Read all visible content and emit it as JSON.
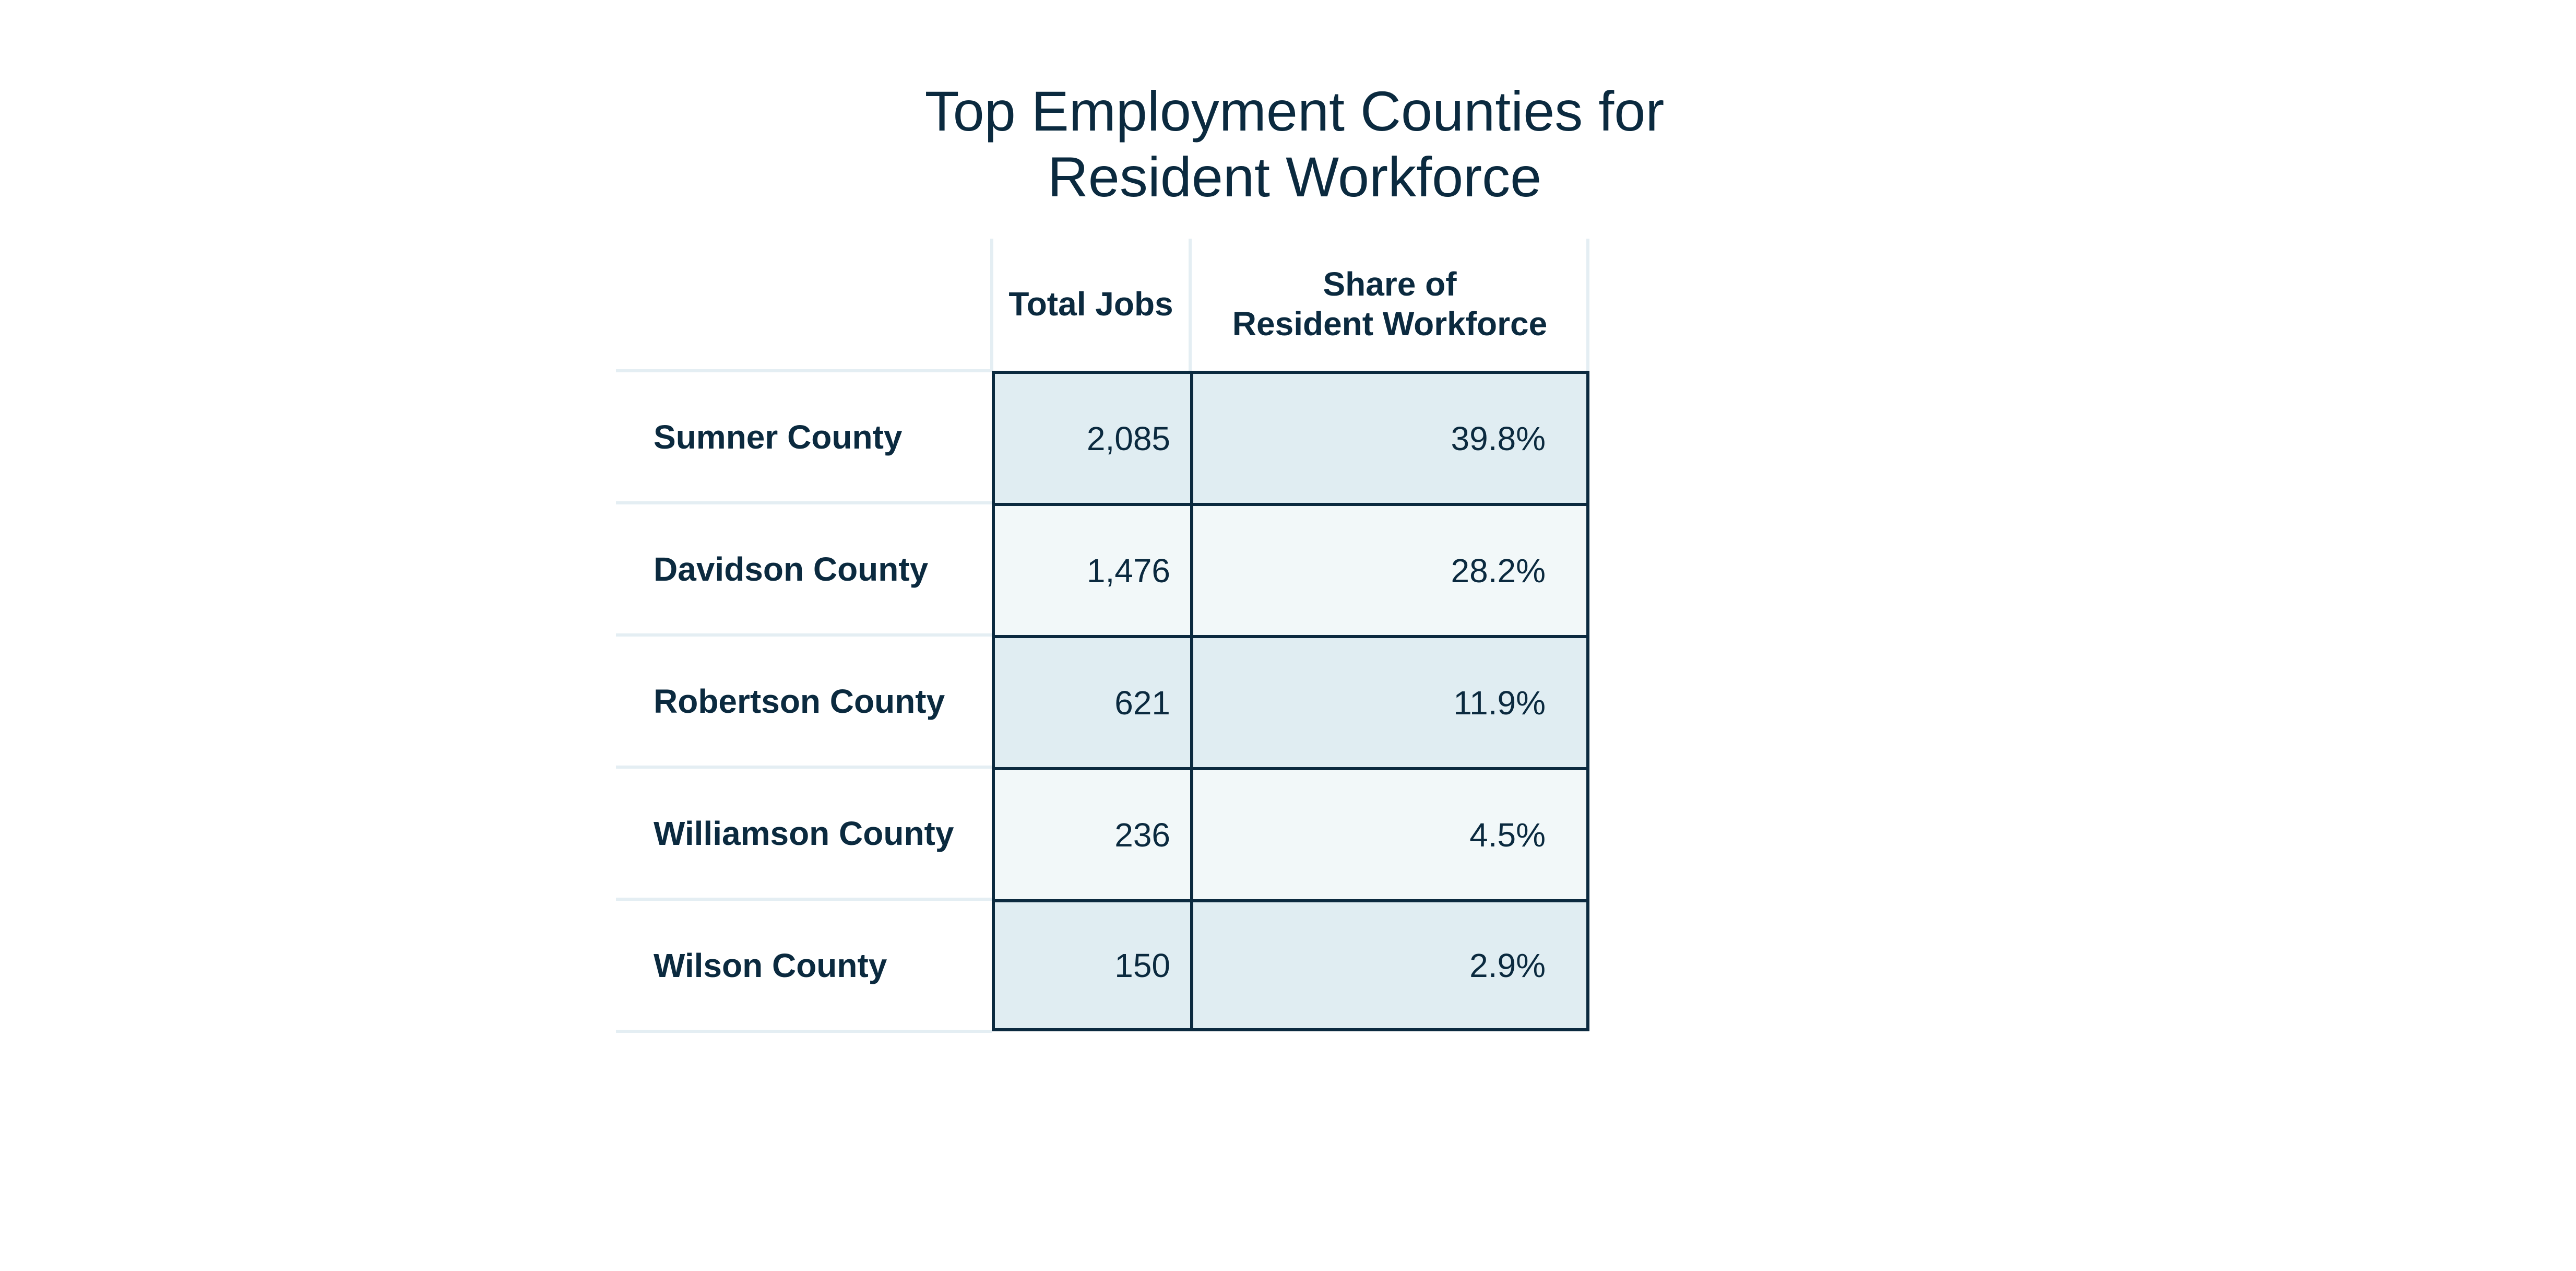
{
  "chart_data": {
    "type": "table",
    "title": "Top Employment Counties for Resident Workforce",
    "title_lines": [
      "Top Employment Counties for",
      "Resident Workforce"
    ],
    "columns": [
      "Total Jobs",
      "Share of Resident Workforce"
    ],
    "column_header_lines": {
      "total_jobs": [
        "Total Jobs"
      ],
      "share": [
        "Share of",
        "Resident Workforce"
      ]
    },
    "rows": [
      {
        "label": "Sumner County",
        "total_jobs": "2,085",
        "share": "39.8%"
      },
      {
        "label": "Davidson County",
        "total_jobs": "1,476",
        "share": "28.2%"
      },
      {
        "label": "Robertson County",
        "total_jobs": "621",
        "share": "11.9%"
      },
      {
        "label": "Williamson County",
        "total_jobs": "236",
        "share": "4.5%"
      },
      {
        "label": "Wilson County",
        "total_jobs": "150",
        "share": "2.9%"
      }
    ],
    "colors": {
      "text": "#0b2a3f",
      "border": "#0b2a3f",
      "row_shade_dark": "#e0edf2",
      "row_shade_light": "#f2f8f9",
      "divider_light": "#e4eef3"
    }
  }
}
